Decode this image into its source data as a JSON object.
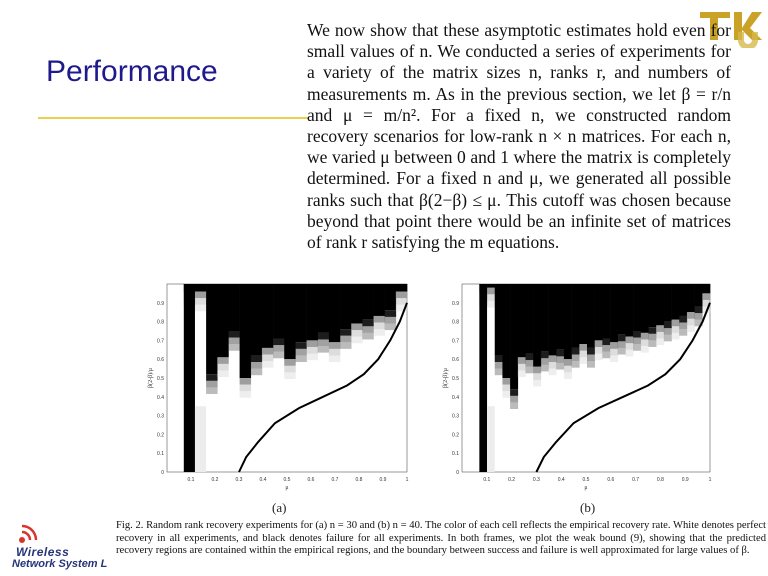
{
  "slide": {
    "title": "Performance"
  },
  "logos": {
    "top_right": "TKU",
    "bottom_left_line1": "Wireless",
    "bottom_left_line2": "Network System L"
  },
  "paragraph": "We now show that these asymptotic estimates hold even for small values of n. We conducted a series of experiments for a variety of the matrix sizes n, ranks r, and numbers of measurements m. As in the previous section, we let β = r/n and μ = m/n². For a fixed n, we constructed random recovery scenarios for low-rank n × n matrices. For each n, we varied μ between 0 and 1 where the matrix is completely determined. For a fixed n and μ, we generated all possible ranks such that β(2−β) ≤ μ. This cutoff was chosen because beyond that point there would be an infinite set of matrices of rank r satisfying the m equations.",
  "figure": {
    "sub_a": "(a)",
    "sub_b": "(b)",
    "xlabel": "μ",
    "ylabel": "β(2-β)/μ",
    "caption": "Fig. 2.   Random rank recovery experiments for (a) n = 30 and (b) n = 40. The color of each cell reflects the empirical recovery rate. White denotes perfect recovery in all experiments, and black denotes failure for all experiments. In both frames, we plot the weak bound (9), showing that the predicted recovery regions are contained within the empirical regions, and the boundary between success and failure is well approximated for large values of β."
  },
  "chart_data": [
    {
      "type": "heatmap",
      "name": "(a)",
      "xlabel": "μ",
      "ylabel": "β(2-β)/μ",
      "xlim": [
        0,
        1
      ],
      "ylim": [
        0,
        1
      ],
      "xticks": [
        "0.1",
        "0.2",
        "0.3",
        "0.4",
        "0.5",
        "0.6",
        "0.7",
        "0.8",
        "0.9",
        "1"
      ],
      "yticks": [
        "0",
        "0.1",
        "0.2",
        "0.3",
        "0.4",
        "0.5",
        "0.6",
        "0.7",
        "0.8",
        "0.9"
      ],
      "columns": 20,
      "boundary_y": [
        0.99,
        0.96,
        0.52,
        0.61,
        0.75,
        0.5,
        0.62,
        0.66,
        0.71,
        0.6,
        0.69,
        0.7,
        0.74,
        0.69,
        0.76,
        0.79,
        0.81,
        0.83,
        0.86,
        0.96
      ],
      "weak_bound": [
        [
          0.3,
          0.0
        ],
        [
          0.33,
          0.08
        ],
        [
          0.38,
          0.16
        ],
        [
          0.45,
          0.26
        ],
        [
          0.55,
          0.34
        ],
        [
          0.65,
          0.4
        ],
        [
          0.75,
          0.46
        ],
        [
          0.82,
          0.52
        ],
        [
          0.88,
          0.6
        ],
        [
          0.93,
          0.7
        ],
        [
          0.97,
          0.8
        ],
        [
          1.0,
          0.9
        ]
      ]
    },
    {
      "type": "heatmap",
      "name": "(b)",
      "xlabel": "μ",
      "ylabel": "β(2-β)/μ",
      "xlim": [
        0,
        1
      ],
      "ylim": [
        0,
        1
      ],
      "xticks": [
        "0.1",
        "0.2",
        "0.3",
        "0.4",
        "0.5",
        "0.6",
        "0.7",
        "0.8",
        "0.9",
        "1"
      ],
      "yticks": [
        "0",
        "0.1",
        "0.2",
        "0.3",
        "0.4",
        "0.5",
        "0.6",
        "0.7",
        "0.8",
        "0.9"
      ],
      "columns": 30,
      "boundary_y": [
        0.99,
        0.98,
        0.62,
        0.5,
        0.44,
        0.61,
        0.63,
        0.56,
        0.64,
        0.62,
        0.65,
        0.6,
        0.66,
        0.68,
        0.66,
        0.7,
        0.71,
        0.69,
        0.73,
        0.72,
        0.75,
        0.74,
        0.77,
        0.78,
        0.8,
        0.81,
        0.83,
        0.85,
        0.88,
        0.95
      ],
      "weak_bound": [
        [
          0.3,
          0.0
        ],
        [
          0.33,
          0.08
        ],
        [
          0.38,
          0.16
        ],
        [
          0.45,
          0.26
        ],
        [
          0.55,
          0.34
        ],
        [
          0.65,
          0.4
        ],
        [
          0.75,
          0.46
        ],
        [
          0.82,
          0.52
        ],
        [
          0.88,
          0.6
        ],
        [
          0.93,
          0.7
        ],
        [
          0.97,
          0.8
        ],
        [
          1.0,
          0.9
        ]
      ]
    }
  ]
}
